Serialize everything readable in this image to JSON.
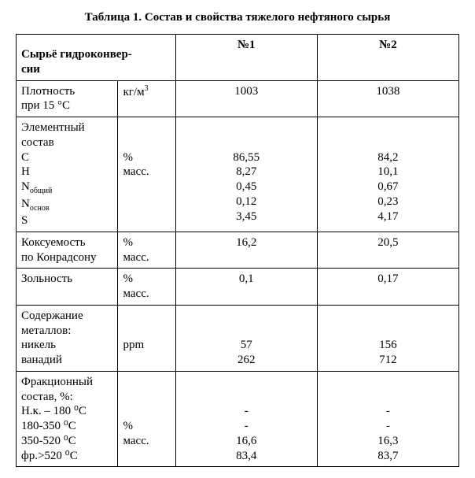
{
  "title_prefix": "Таблица 1.",
  "title": "Состав и свойства тяжелого нефтяного сырья",
  "header": {
    "param": "Сырьё  гидроконвер-\nсии",
    "col1": "№1",
    "col2": "№2"
  },
  "rows": {
    "density": {
      "label": "Плотность\nпри 15 °С",
      "unit_pre": "кг/м",
      "unit_sup": "3",
      "v1": "1003",
      "v2": "1038"
    },
    "elem": {
      "label_top": "Элементный\nсостав",
      "lines": {
        "c": "C",
        "h": "H",
        "n_ob_pre": "N",
        "n_ob_sub": "общий",
        "n_os_pre": "N",
        "n_os_sub": "основ",
        "s": "S"
      },
      "unit1": "%",
      "unit2": "масс.",
      "v1": [
        "86,55",
        "8,27",
        "0,45",
        "0,12",
        "3,45"
      ],
      "v2": [
        "84,2",
        "10,1",
        "0,67",
        "0,23",
        "4,17"
      ]
    },
    "coke": {
      "label": "Коксуемость\nпо Конрадсону",
      "unit1": "%",
      "unit2": "масс.",
      "v1": "16,2",
      "v2": "20,5"
    },
    "ash": {
      "label": "Зольность",
      "unit1": "%",
      "unit2": "масс.",
      "v1": "0,1",
      "v2": "0,17"
    },
    "metals": {
      "label_top": "Содержание\nметаллов:",
      "nickel": "никель",
      "vanad": "ванадий",
      "unit": "ppm",
      "v1": [
        "57",
        "262"
      ],
      "v2": [
        "156",
        "712"
      ]
    },
    "frac": {
      "label_top": "Фракционный\nсостав, %:",
      "lines": [
        "Н.к. – 180 ⁰С",
        "180-350 ⁰С",
        "350-520 ⁰С",
        "фр.>520 ⁰С"
      ],
      "unit1": "%",
      "unit2": "масс.",
      "v1": [
        "-",
        "-",
        "16,6",
        "83,4"
      ],
      "v2": [
        "-",
        "-",
        "16,3",
        "83,7"
      ]
    }
  }
}
